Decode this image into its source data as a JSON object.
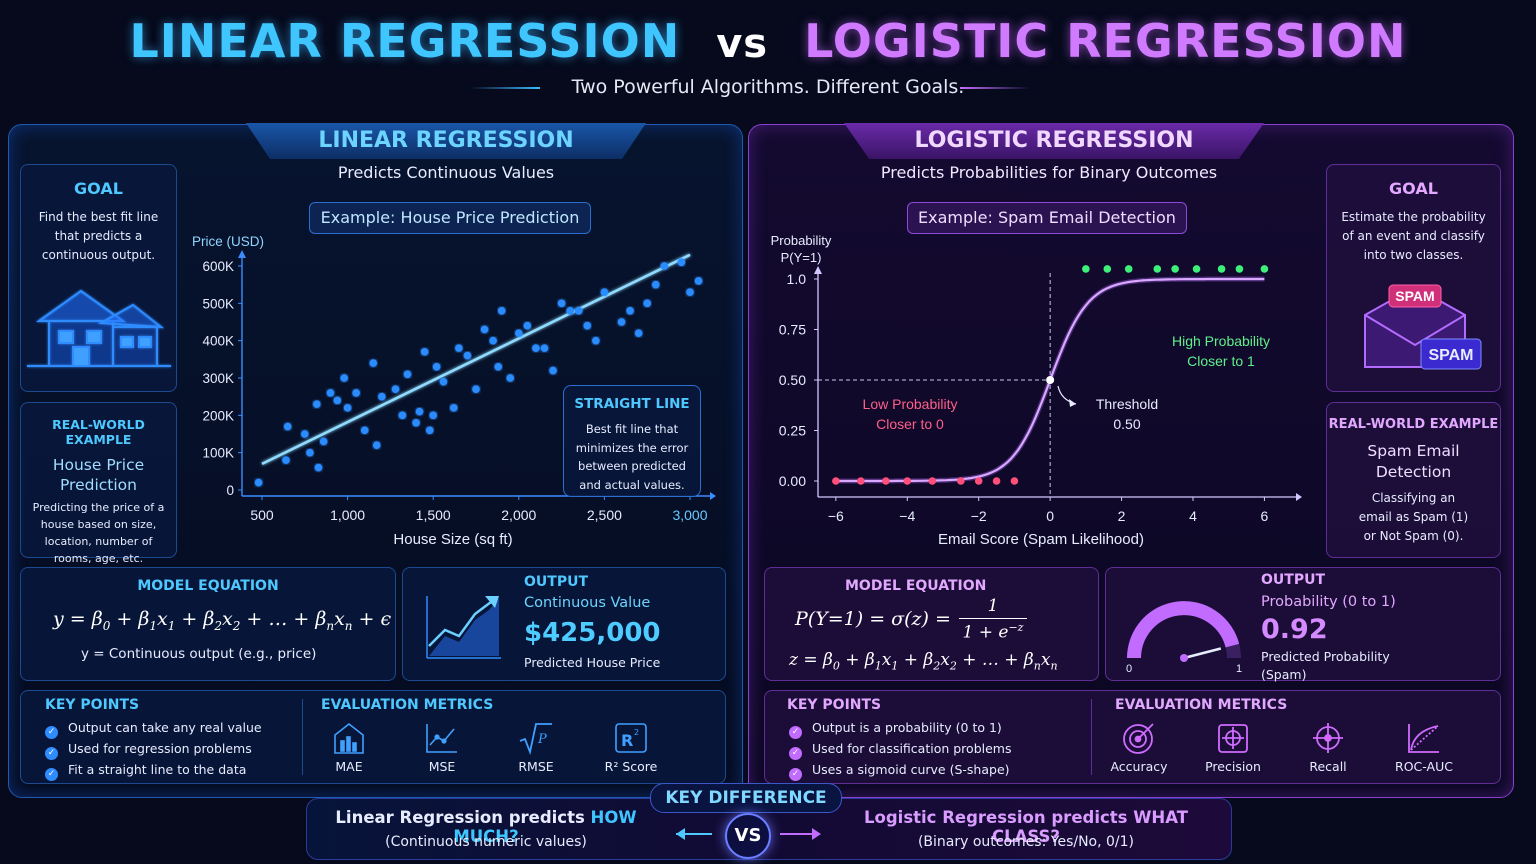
{
  "header": {
    "title_left": "LINEAR REGRESSION",
    "title_vs": "vs",
    "title_right": "LOGISTIC REGRESSION",
    "subtitle": "Two Powerful Algorithms. Different Goals."
  },
  "linear": {
    "tab": "LINEAR REGRESSION",
    "tagline": "Predicts Continuous Values",
    "example": "Example: House Price Prediction",
    "goal": {
      "title": "GOAL",
      "text": "Find the best fit line that predicts a continuous output."
    },
    "realworld": {
      "title": "REAL-WORLD EXAMPLE",
      "subtitle": "House Price Prediction",
      "text": "Predicting the price of a house based on size, location, number of rooms, age, etc."
    },
    "callout": {
      "title": "STRAIGHT LINE",
      "text": "Best fit line that minimizes the error between predicted and actual values."
    },
    "model": {
      "title": "MODEL EQUATION",
      "note": "y = Continuous output (e.g., price)"
    },
    "output": {
      "title": "OUTPUT",
      "kind": "Continuous Value",
      "value": "$425,000",
      "desc": "Predicted House Price"
    },
    "key_points": {
      "title": "KEY POINTS",
      "items": [
        "Output can take any real value",
        "Used for regression problems",
        "Fit a straight line to the data"
      ]
    },
    "metrics": {
      "title": "EVALUATION METRICS",
      "items": [
        "MAE",
        "MSE",
        "RMSE",
        "R² Score"
      ]
    }
  },
  "logistic": {
    "tab": "LOGISTIC REGRESSION",
    "tagline": "Predicts Probabilities for Binary Outcomes",
    "example": "Example: Spam Email Detection",
    "goal": {
      "title": "GOAL",
      "text": "Estimate the probability of an event and classify into two classes."
    },
    "spam_labels": [
      "SPAM",
      "SPAM"
    ],
    "realworld": {
      "title": "REAL-WORLD EXAMPLE",
      "subtitle": "Spam Email Detection",
      "text": "Classifying an email as Spam (1) or Not Spam (0)."
    },
    "annotations": {
      "high_1": "High Probability",
      "high_2": "Closer to 1",
      "low_1": "Low Probability",
      "low_2": "Closer to 0",
      "thr_1": "Threshold",
      "thr_2": "0.50"
    },
    "model": {
      "title": "MODEL EQUATION"
    },
    "output": {
      "title": "OUTPUT",
      "kind": "Probability (0 to 1)",
      "value": "0.92",
      "desc": "Predicted Probability (Spam)",
      "gauge_min": "0",
      "gauge_max": "1",
      "gauge_level": 0.92
    },
    "key_points": {
      "title": "KEY POINTS",
      "items": [
        "Output is a probability (0 to 1)",
        "Used for classification problems",
        "Uses a sigmoid curve (S-shape)"
      ]
    },
    "metrics": {
      "title": "EVALUATION METRICS",
      "items": [
        "Accuracy",
        "Precision",
        "Recall",
        "ROC-AUC"
      ]
    }
  },
  "footer": {
    "title": "KEY DIFFERENCE",
    "left_a": "Linear Regression predicts ",
    "left_b": "HOW MUCH?",
    "left_sub": "(Continuous numeric values)",
    "vs": "VS",
    "right_a": "Logistic Regression predicts ",
    "right_b": "WHAT CLASS?",
    "right_sub": "(Binary outcomes: Yes/No, 0/1)"
  },
  "chart_data": [
    {
      "type": "scatter",
      "xlabel": "House Size (sq ft)",
      "ylabel": "Price (USD)",
      "xlim": [
        500,
        3000
      ],
      "ylim": [
        0,
        600000
      ],
      "x_ticks": [
        "500",
        "1,000",
        "1,500",
        "2,000",
        "2,500",
        "3,000"
      ],
      "y_ticks": [
        "0",
        "100K",
        "200K",
        "300K",
        "400K",
        "500K",
        "600K"
      ],
      "color": "#2a8cff",
      "points": [
        [
          480,
          20000
        ],
        [
          650,
          170000
        ],
        [
          640,
          80000
        ],
        [
          750,
          150000
        ],
        [
          780,
          100000
        ],
        [
          830,
          60000
        ],
        [
          860,
          130000
        ],
        [
          820,
          230000
        ],
        [
          900,
          260000
        ],
        [
          940,
          240000
        ],
        [
          980,
          300000
        ],
        [
          1000,
          220000
        ],
        [
          1050,
          260000
        ],
        [
          1100,
          160000
        ],
        [
          1150,
          340000
        ],
        [
          1170,
          120000
        ],
        [
          1200,
          250000
        ],
        [
          1280,
          270000
        ],
        [
          1320,
          200000
        ],
        [
          1350,
          310000
        ],
        [
          1400,
          180000
        ],
        [
          1420,
          210000
        ],
        [
          1450,
          370000
        ],
        [
          1480,
          160000
        ],
        [
          1500,
          200000
        ],
        [
          1520,
          330000
        ],
        [
          1560,
          290000
        ],
        [
          1620,
          220000
        ],
        [
          1650,
          380000
        ],
        [
          1700,
          360000
        ],
        [
          1750,
          270000
        ],
        [
          1800,
          430000
        ],
        [
          1850,
          400000
        ],
        [
          1880,
          330000
        ],
        [
          1900,
          480000
        ],
        [
          1950,
          300000
        ],
        [
          2000,
          420000
        ],
        [
          2050,
          440000
        ],
        [
          2100,
          380000
        ],
        [
          2150,
          380000
        ],
        [
          2200,
          320000
        ],
        [
          2250,
          500000
        ],
        [
          2300,
          480000
        ],
        [
          2350,
          480000
        ],
        [
          2400,
          440000
        ],
        [
          2450,
          400000
        ],
        [
          2500,
          530000
        ],
        [
          2600,
          450000
        ],
        [
          2650,
          480000
        ],
        [
          2700,
          420000
        ],
        [
          2750,
          500000
        ],
        [
          2800,
          550000
        ],
        [
          2850,
          600000
        ],
        [
          2950,
          610000
        ],
        [
          3000,
          530000
        ],
        [
          3050,
          560000
        ]
      ],
      "fit_line": [
        [
          500,
          70000
        ],
        [
          3000,
          630000
        ]
      ]
    },
    {
      "type": "line",
      "xlabel": "Email Score (Spam Likelihood)",
      "ylabel_1": "Probability",
      "ylabel_2": "P(Y=1)",
      "xlim": [
        -6.5,
        6.8
      ],
      "ylim": [
        0,
        1
      ],
      "x_ticks": [
        "−6",
        "−4",
        "−2",
        "0",
        "2",
        "4",
        "6"
      ],
      "x_tick_values": [
        -6,
        -4,
        -2,
        0,
        2,
        4,
        6
      ],
      "y_ticks": [
        "0.00",
        "0.25",
        "0.50",
        "0.75",
        "1.0"
      ],
      "y_tick_values": [
        0,
        0.25,
        0.5,
        0.75,
        1.0
      ],
      "threshold": {
        "x": 0,
        "y": 0.5
      },
      "curve": "sigmoid",
      "class0_points": [
        -6,
        -5.3,
        -4.6,
        -4,
        -3.3,
        -2.5,
        -2,
        -1.5,
        -1
      ],
      "class1_points": [
        1,
        1.6,
        2.2,
        3,
        3.5,
        4.1,
        4.8,
        5.3,
        6
      ],
      "colors": {
        "curve": "#b266ff",
        "class0": "#ff4f7a",
        "class1": "#3ef07a"
      }
    }
  ]
}
